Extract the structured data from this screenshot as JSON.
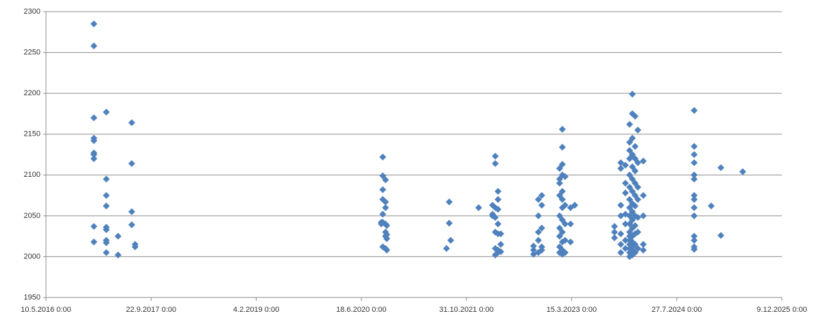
{
  "chart_data": {
    "type": "scatter",
    "color": "#4f81bd",
    "grid": true,
    "xlim": [
      42500,
      46000
    ],
    "xticks": [
      {
        "value": 42500,
        "label": "10.5.2016 0:00"
      },
      {
        "value": 43000,
        "label": "22.9.2017 0:00"
      },
      {
        "value": 43500,
        "label": "4.2.2019 0:00"
      },
      {
        "value": 44000,
        "label": "18.6.2020 0:00"
      },
      {
        "value": 44500,
        "label": "31.10.2021 0:00"
      },
      {
        "value": 45000,
        "label": "15.3.2023 0:00"
      },
      {
        "value": 45500,
        "label": "27.7.2024 0:00"
      },
      {
        "value": 46000,
        "label": "9.12.2025 0:00"
      }
    ],
    "ylim": [
      1950,
      2300
    ],
    "yticks": [
      1950,
      2000,
      2050,
      2100,
      2150,
      2200,
      2250,
      2300
    ],
    "x": [
      42728,
      42728,
      42728,
      42728,
      42728,
      42728,
      42728,
      42728,
      42728,
      42728,
      42787,
      42787,
      42787,
      42787,
      42787,
      42787,
      42787,
      42787,
      42787,
      42843,
      42843,
      42908,
      42908,
      42908,
      42908,
      42924,
      42924,
      44102,
      44102,
      44102,
      44102,
      44102,
      44102,
      44102,
      44115,
      44115,
      44115,
      44115,
      44115,
      44115,
      44115,
      44095,
      44095,
      44121,
      44121,
      44121,
      44121,
      44405,
      44418,
      44418,
      44425,
      44558,
      44624,
      44624,
      44624,
      44637,
      44637,
      44637,
      44637,
      44637,
      44637,
      44637,
      44650,
      44650,
      44650,
      44650,
      44650,
      44650,
      44650,
      44663,
      44663,
      44663,
      44819,
      44819,
      44819,
      44842,
      44842,
      44842,
      44842,
      44842,
      44858,
      44858,
      44858,
      44858,
      44858,
      44943,
      44943,
      44943,
      44943,
      44943,
      44943,
      44943,
      44943,
      44943,
      44956,
      44956,
      44956,
      44956,
      44956,
      44956,
      44956,
      44956,
      44956,
      44956,
      44956,
      44956,
      44969,
      44969,
      44969,
      44969,
      44969,
      44995,
      44995,
      44995,
      45015,
      45204,
      45204,
      45204,
      45234,
      45234,
      45234,
      45234,
      45234,
      45234,
      45234,
      45256,
      45256,
      45256,
      45256,
      45256,
      45256,
      45256,
      45276,
      45276,
      45276,
      45276,
      45276,
      45276,
      45276,
      45276,
      45276,
      45276,
      45276,
      45276,
      45276,
      45276,
      45276,
      45276,
      45276,
      45289,
      45289,
      45289,
      45289,
      45289,
      45289,
      45289,
      45289,
      45289,
      45289,
      45289,
      45289,
      45289,
      45289,
      45289,
      45289,
      45302,
      45302,
      45302,
      45302,
      45302,
      45302,
      45302,
      45302,
      45302,
      45302,
      45302,
      45302,
      45315,
      45315,
      45315,
      45315,
      45315,
      45315,
      45315,
      45341,
      45341,
      45341,
      45341,
      45341,
      45583,
      45583,
      45583,
      45583,
      45583,
      45583,
      45583,
      45583,
      45583,
      45583,
      45583,
      45583,
      45583,
      45583,
      45664,
      45710,
      45710,
      45814
    ],
    "values": [
      2285,
      2258,
      2170,
      2145,
      2142,
      2127,
      2125,
      2120,
      2037,
      2018,
      2177,
      2095,
      2075,
      2062,
      2036,
      2033,
      2020,
      2017,
      2005,
      2025,
      2002,
      2164,
      2114,
      2055,
      2039,
      2015,
      2012,
      2122,
      2099,
      2082,
      2070,
      2052,
      2042,
      2012,
      2094,
      2067,
      2060,
      2040,
      2030,
      2025,
      2010,
      2042,
      2040,
      2027,
      2022,
      2008,
      2038,
      2010,
      2041,
      2067,
      2020,
      2060,
      2063,
      2052,
      2050,
      2123,
      2114,
      2060,
      2048,
      2030,
      2010,
      2002,
      2080,
      2070,
      2058,
      2040,
      2028,
      2008,
      2005,
      2028,
      2015,
      2006,
      2013,
      2008,
      2003,
      2070,
      2050,
      2030,
      2020,
      2005,
      2075,
      2063,
      2035,
      2012,
      2008,
      2108,
      2095,
      2090,
      2075,
      2050,
      2035,
      2025,
      2012,
      2005,
      2156,
      2134,
      2113,
      2100,
      2080,
      2070,
      2060,
      2045,
      2030,
      2018,
      2008,
      2003,
      2098,
      2063,
      2040,
      2020,
      2005,
      2060,
      2040,
      2018,
      2063,
      2037,
      2030,
      2023,
      2115,
      2108,
      2063,
      2050,
      2028,
      2015,
      2005,
      2112,
      2090,
      2078,
      2052,
      2040,
      2020,
      2010,
      2162,
      2140,
      2130,
      2120,
      2100,
      2085,
      2070,
      2060,
      2050,
      2040,
      2030,
      2025,
      2020,
      2015,
      2010,
      2005,
      2000,
      2199,
      2175,
      2145,
      2125,
      2110,
      2095,
      2080,
      2065,
      2055,
      2045,
      2035,
      2025,
      2018,
      2012,
      2008,
      2002,
      2172,
      2135,
      2120,
      2105,
      2090,
      2075,
      2062,
      2050,
      2038,
      2028,
      2015,
      2005,
      2155,
      2115,
      2085,
      2070,
      2048,
      2030,
      2010,
      2117,
      2075,
      2050,
      2015,
      2008,
      2179,
      2135,
      2125,
      2115,
      2100,
      2095,
      2075,
      2070,
      2060,
      2050,
      2025,
      2020,
      2012,
      2009,
      2062,
      2109,
      2026,
      2104
    ]
  }
}
